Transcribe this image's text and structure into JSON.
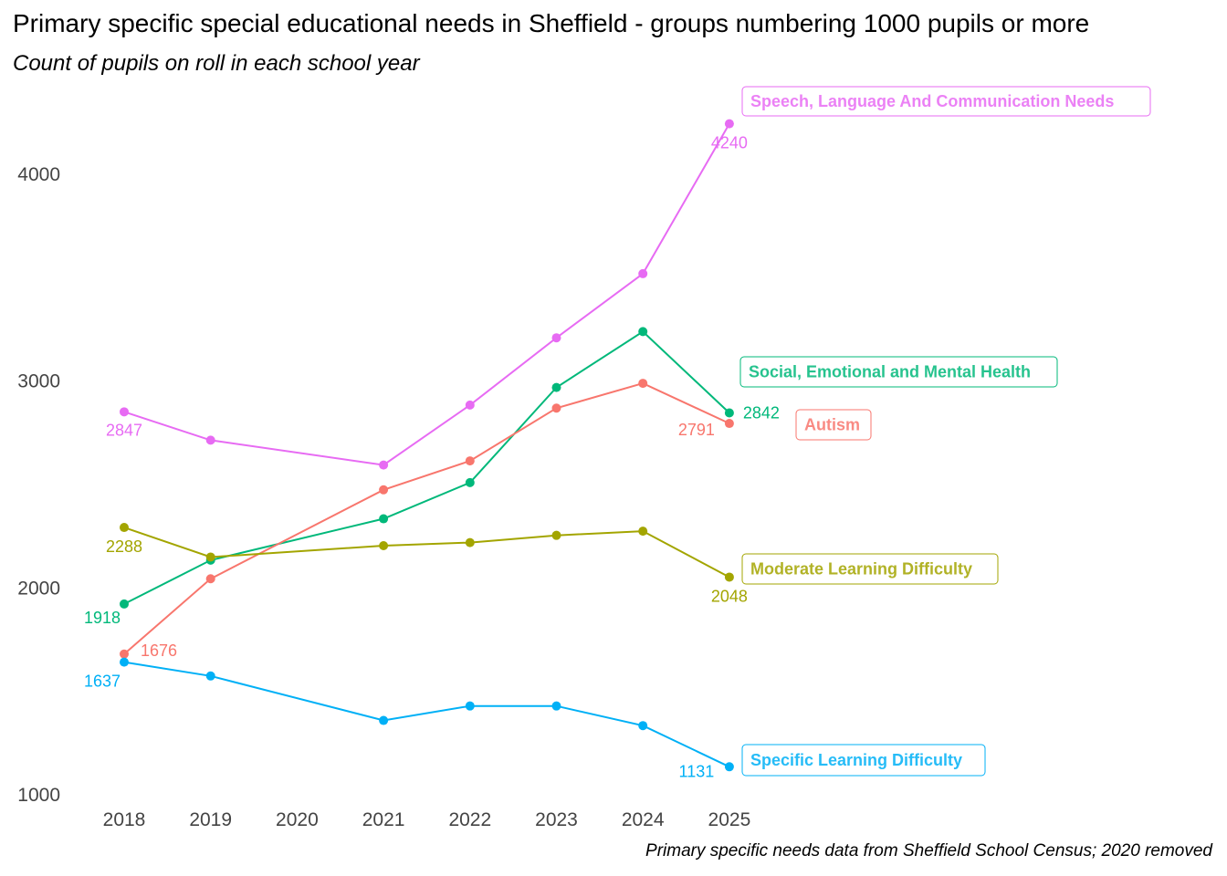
{
  "chart_data": {
    "type": "line",
    "title": "Primary specific special educational needs in Sheffield - groups numbering 1000 pupils or more",
    "subtitle": "Count of pupils on roll in each school year",
    "caption": "Primary specific needs data from Sheffield School Census; 2020 removed",
    "xlabel": "",
    "ylabel": "",
    "x": [
      2018,
      2019,
      2020,
      2021,
      2022,
      2023,
      2024,
      2025
    ],
    "x_tick_labels": [
      "2018",
      "2019",
      "2020",
      "2021",
      "2022",
      "2023",
      "2024",
      "2025"
    ],
    "y_ticks": [
      1000,
      2000,
      3000,
      4000
    ],
    "y_tick_labels": [
      "1000",
      "2000",
      "3000",
      "4000"
    ],
    "ylim": [
      1000,
      4300
    ],
    "grid": false,
    "legend": "direct labels at line ends",
    "series": [
      {
        "name": "Speech, Language And Communication Needs",
        "color": "#E76BF3",
        "points": [
          [
            2018,
            2847
          ],
          [
            2019,
            2710
          ],
          [
            2021,
            2590
          ],
          [
            2022,
            2880
          ],
          [
            2023,
            3205
          ],
          [
            2024,
            3515
          ],
          [
            2025,
            4240
          ]
        ],
        "labels": [
          {
            "x": 2018,
            "text": "2847"
          },
          {
            "x": 2025,
            "text": "4240"
          }
        ]
      },
      {
        "name": "Social, Emotional and Mental Health",
        "color": "#00B87A",
        "points": [
          [
            2018,
            1918
          ],
          [
            2019,
            2130
          ],
          [
            2021,
            2330
          ],
          [
            2022,
            2505
          ],
          [
            2023,
            2965
          ],
          [
            2024,
            3235
          ],
          [
            2025,
            2842
          ]
        ],
        "labels": [
          {
            "x": 2018,
            "text": "1918"
          },
          {
            "x": 2025,
            "text": "2842"
          }
        ]
      },
      {
        "name": "Autism",
        "color": "#F8766D",
        "points": [
          [
            2018,
            1676
          ],
          [
            2019,
            2040
          ],
          [
            2021,
            2470
          ],
          [
            2022,
            2610
          ],
          [
            2023,
            2865
          ],
          [
            2024,
            2985
          ],
          [
            2025,
            2791
          ]
        ],
        "labels": [
          {
            "x": 2018,
            "text": "1676"
          },
          {
            "x": 2025,
            "text": "2791"
          }
        ]
      },
      {
        "name": "Moderate Learning Difficulty",
        "color": "#A3A500",
        "points": [
          [
            2018,
            2288
          ],
          [
            2019,
            2145
          ],
          [
            2021,
            2200
          ],
          [
            2022,
            2215
          ],
          [
            2023,
            2250
          ],
          [
            2024,
            2270
          ],
          [
            2025,
            2048
          ]
        ],
        "labels": [
          {
            "x": 2018,
            "text": "2288"
          },
          {
            "x": 2025,
            "text": "2048"
          }
        ]
      },
      {
        "name": "Specific Learning Difficulty",
        "color": "#00B0F6",
        "points": [
          [
            2018,
            1637
          ],
          [
            2019,
            1570
          ],
          [
            2021,
            1355
          ],
          [
            2022,
            1425
          ],
          [
            2023,
            1425
          ],
          [
            2024,
            1330
          ],
          [
            2025,
            1131
          ]
        ],
        "labels": [
          {
            "x": 2018,
            "text": "1637"
          },
          {
            "x": 2025,
            "text": "1131"
          }
        ]
      }
    ]
  }
}
